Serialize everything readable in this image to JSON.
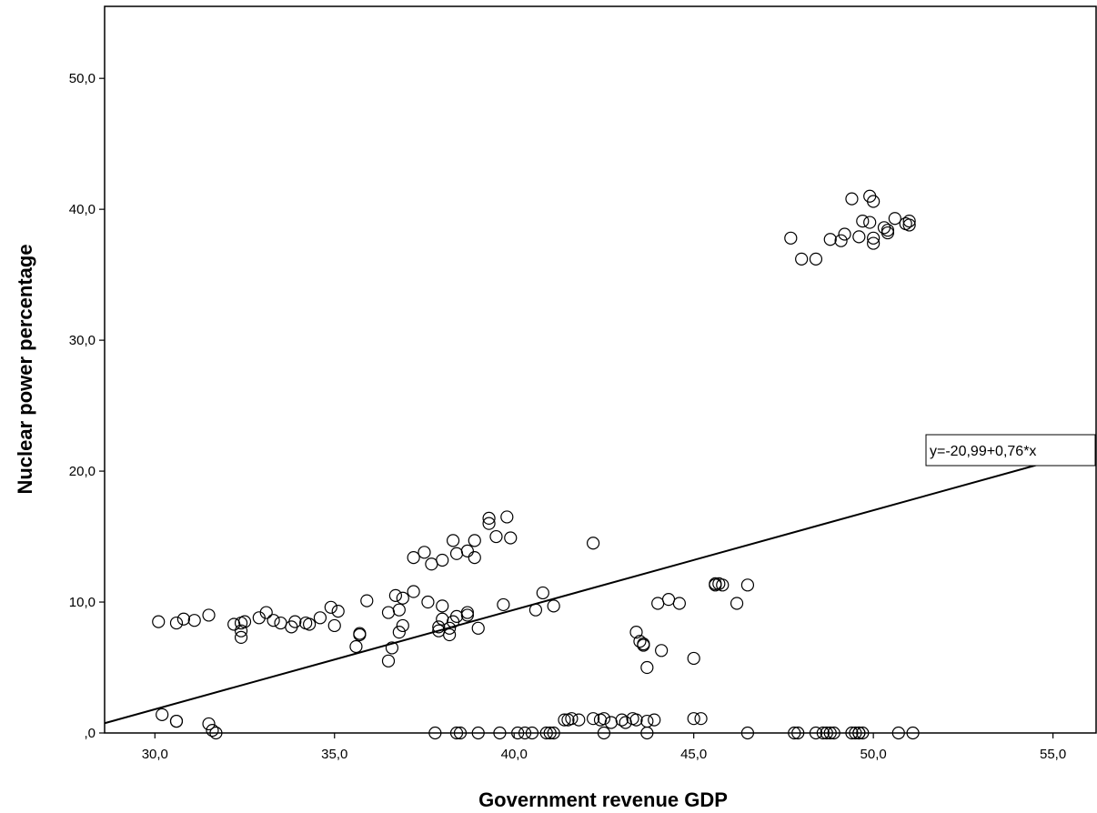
{
  "chart_data": {
    "type": "scatter",
    "xlabel": "Government revenue GDP",
    "ylabel": "Nuclear power percentage",
    "xlim": [
      28.6,
      56.2
    ],
    "ylim": [
      0,
      55.5
    ],
    "x_ticks": [
      30,
      35,
      40,
      45,
      50,
      55
    ],
    "y_ticks": [
      0,
      10,
      20,
      30,
      40,
      50
    ],
    "x_tick_labels": [
      "30,0",
      "35,0",
      "40,0",
      "45,0",
      "50,0",
      "55,0"
    ],
    "y_tick_labels": [
      ",0",
      "10,0",
      "20,0",
      "30,0",
      "40,0",
      "50,0"
    ],
    "grid": false,
    "fit_line": {
      "label": "y=-20,99+0,76*x",
      "intercept": -20.99,
      "slope": 0.76
    },
    "points": [
      [
        30.1,
        8.5
      ],
      [
        30.6,
        8.4
      ],
      [
        30.8,
        8.7
      ],
      [
        31.1,
        8.6
      ],
      [
        31.5,
        9.0
      ],
      [
        32.2,
        8.3
      ],
      [
        32.4,
        8.4
      ],
      [
        32.5,
        8.5
      ],
      [
        32.4,
        7.8
      ],
      [
        32.4,
        7.3
      ],
      [
        32.9,
        8.8
      ],
      [
        33.1,
        9.2
      ],
      [
        33.3,
        8.6
      ],
      [
        33.5,
        8.4
      ],
      [
        33.8,
        8.1
      ],
      [
        33.9,
        8.5
      ],
      [
        34.2,
        8.4
      ],
      [
        34.3,
        8.3
      ],
      [
        34.6,
        8.8
      ],
      [
        34.9,
        9.6
      ],
      [
        35.0,
        8.2
      ],
      [
        35.1,
        9.3
      ],
      [
        35.6,
        6.6
      ],
      [
        35.7,
        7.6
      ],
      [
        35.7,
        7.5
      ],
      [
        35.9,
        10.1
      ],
      [
        36.5,
        9.2
      ],
      [
        36.6,
        6.5
      ],
      [
        36.5,
        5.5
      ],
      [
        36.7,
        10.5
      ],
      [
        36.8,
        9.4
      ],
      [
        36.9,
        10.3
      ],
      [
        36.8,
        7.7
      ],
      [
        36.9,
        8.2
      ],
      [
        37.2,
        10.8
      ],
      [
        37.2,
        13.4
      ],
      [
        37.5,
        13.8
      ],
      [
        37.6,
        10.0
      ],
      [
        37.7,
        12.9
      ],
      [
        37.9,
        8.1
      ],
      [
        37.9,
        7.8
      ],
      [
        38.0,
        8.7
      ],
      [
        38.0,
        9.7
      ],
      [
        38.0,
        13.2
      ],
      [
        38.2,
        8.0
      ],
      [
        38.2,
        7.5
      ],
      [
        38.3,
        8.5
      ],
      [
        38.3,
        14.7
      ],
      [
        38.4,
        8.9
      ],
      [
        38.4,
        13.7
      ],
      [
        38.7,
        13.9
      ],
      [
        38.7,
        9.0
      ],
      [
        38.7,
        9.2
      ],
      [
        38.9,
        14.7
      ],
      [
        38.9,
        13.4
      ],
      [
        39.0,
        8.0
      ],
      [
        39.3,
        16.4
      ],
      [
        39.3,
        16.0
      ],
      [
        39.5,
        15.0
      ],
      [
        39.7,
        9.8
      ],
      [
        39.8,
        16.5
      ],
      [
        39.9,
        14.9
      ],
      [
        40.6,
        9.4
      ],
      [
        40.8,
        10.7
      ],
      [
        41.1,
        9.7
      ],
      [
        42.2,
        14.5
      ],
      [
        43.4,
        7.7
      ],
      [
        43.5,
        7.0
      ],
      [
        43.6,
        6.7
      ],
      [
        43.6,
        6.8
      ],
      [
        43.7,
        5.0
      ],
      [
        44.0,
        9.9
      ],
      [
        44.1,
        6.3
      ],
      [
        44.3,
        10.2
      ],
      [
        44.6,
        9.9
      ],
      [
        45.0,
        5.7
      ],
      [
        45.6,
        11.3
      ],
      [
        45.6,
        11.4
      ],
      [
        45.7,
        11.4
      ],
      [
        45.8,
        11.3
      ],
      [
        46.2,
        9.9
      ],
      [
        46.5,
        11.3
      ],
      [
        47.7,
        37.8
      ],
      [
        48.0,
        36.2
      ],
      [
        48.4,
        36.2
      ],
      [
        48.8,
        37.7
      ],
      [
        49.1,
        37.6
      ],
      [
        49.2,
        38.1
      ],
      [
        49.4,
        40.8
      ],
      [
        49.6,
        37.9
      ],
      [
        49.7,
        39.1
      ],
      [
        49.9,
        41.0
      ],
      [
        49.9,
        39.0
      ],
      [
        50.0,
        37.8
      ],
      [
        50.0,
        37.4
      ],
      [
        50.0,
        40.6
      ],
      [
        50.3,
        38.6
      ],
      [
        50.4,
        38.4
      ],
      [
        50.4,
        38.2
      ],
      [
        50.6,
        39.3
      ],
      [
        50.9,
        38.9
      ],
      [
        51.0,
        38.8
      ],
      [
        51.0,
        39.1
      ],
      [
        30.2,
        1.4
      ],
      [
        30.6,
        0.9
      ],
      [
        30.6,
        0.9
      ],
      [
        31.5,
        0.7
      ],
      [
        31.6,
        0.2
      ],
      [
        31.7,
        0.0
      ],
      [
        37.8,
        0.0
      ],
      [
        38.4,
        0.0
      ],
      [
        38.5,
        0.0
      ],
      [
        39.0,
        0.0
      ],
      [
        39.6,
        0.0
      ],
      [
        40.1,
        0.0
      ],
      [
        40.3,
        0.0
      ],
      [
        40.5,
        0.0
      ],
      [
        40.9,
        0.0
      ],
      [
        41.0,
        0.0
      ],
      [
        41.1,
        0.0
      ],
      [
        41.4,
        1.0
      ],
      [
        41.5,
        1.0
      ],
      [
        41.6,
        1.1
      ],
      [
        41.8,
        1.0
      ],
      [
        42.2,
        1.1
      ],
      [
        42.4,
        1.0
      ],
      [
        42.5,
        0.0
      ],
      [
        42.5,
        1.1
      ],
      [
        42.7,
        0.8
      ],
      [
        43.0,
        1.0
      ],
      [
        43.1,
        0.8
      ],
      [
        43.3,
        1.1
      ],
      [
        43.4,
        1.0
      ],
      [
        43.7,
        0.9
      ],
      [
        43.7,
        0.0
      ],
      [
        43.9,
        1.0
      ],
      [
        45.0,
        1.1
      ],
      [
        45.2,
        1.1
      ],
      [
        46.5,
        0.0
      ],
      [
        47.8,
        0.0
      ],
      [
        47.9,
        0.0
      ],
      [
        48.4,
        0.0
      ],
      [
        48.6,
        0.0
      ],
      [
        48.7,
        0.0
      ],
      [
        48.8,
        0.0
      ],
      [
        48.9,
        0.0
      ],
      [
        49.4,
        0.0
      ],
      [
        49.5,
        0.0
      ],
      [
        49.6,
        0.0
      ],
      [
        49.6,
        0.0
      ],
      [
        49.7,
        0.0
      ],
      [
        50.7,
        0.0
      ],
      [
        51.1,
        0.0
      ]
    ]
  }
}
